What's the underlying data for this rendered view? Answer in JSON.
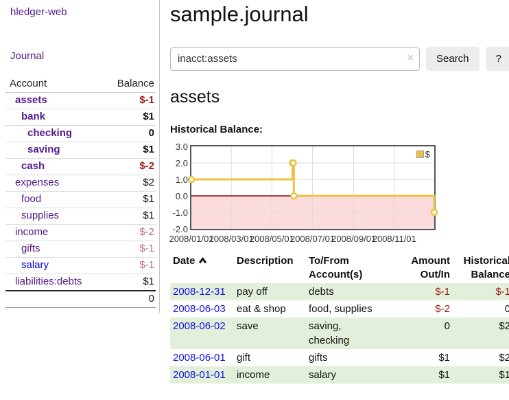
{
  "app": {
    "title": "hledger-web"
  },
  "sidebar": {
    "journal_label": "Journal",
    "table": {
      "headers": [
        "Account",
        "Balance"
      ],
      "rows": [
        {
          "account": "assets",
          "balance": "$-1",
          "indent": 1,
          "bold": true,
          "neg": "strong"
        },
        {
          "account": "bank",
          "balance": "$1",
          "indent": 2,
          "bold": true,
          "neg": ""
        },
        {
          "account": "checking",
          "balance": "0",
          "indent": 3,
          "bold": true,
          "neg": ""
        },
        {
          "account": "saving",
          "balance": "$1",
          "indent": 3,
          "bold": true,
          "neg": ""
        },
        {
          "account": "cash",
          "balance": "$-2",
          "indent": 2,
          "bold": true,
          "neg": "strong"
        },
        {
          "account": "expenses",
          "balance": "$2",
          "indent": 1,
          "bold": false,
          "neg": ""
        },
        {
          "account": "food",
          "balance": "$1",
          "indent": 2,
          "bold": false,
          "neg": ""
        },
        {
          "account": "supplies",
          "balance": "$1",
          "indent": 2,
          "bold": false,
          "neg": ""
        },
        {
          "account": "income",
          "balance": "$-2",
          "indent": 1,
          "bold": false,
          "neg": "soft"
        },
        {
          "account": "gifts",
          "balance": "$-1",
          "indent": 2,
          "bold": false,
          "neg": "soft"
        },
        {
          "account": "salary",
          "balance": "$-1",
          "indent": 2,
          "bold": false,
          "neg": "soft",
          "link_color": "blue"
        },
        {
          "account": "liabilities:debts",
          "balance": "$1",
          "indent": 1,
          "bold": false,
          "neg": ""
        }
      ],
      "total": "0"
    }
  },
  "main": {
    "title": "sample.journal",
    "search": {
      "value": "inacct:assets",
      "clear_icon": "×",
      "button_label": "Search",
      "help_label": "?"
    },
    "account_heading": "assets",
    "chart_title": "Historical Balance:",
    "register": {
      "headers": {
        "date": "Date",
        "description": "Description",
        "accounts_line1": "To/From",
        "accounts_line2": "Account(s)",
        "amount_line1": "Amount",
        "amount_line2": "Out/In",
        "balance_line1": "Historical",
        "balance_line2": "Balance"
      },
      "rows": [
        {
          "date": "2008-12-31",
          "description": "pay off",
          "accounts": [
            "debts"
          ],
          "amount": "$-1",
          "balance": "$-1"
        },
        {
          "date": "2008-06-03",
          "description": "eat & shop",
          "accounts": [
            "food, supplies"
          ],
          "amount": "$-2",
          "balance": "0"
        },
        {
          "date": "2008-06-02",
          "description": "save",
          "accounts": [
            "saving,",
            "checking"
          ],
          "amount": "0",
          "balance": "$2"
        },
        {
          "date": "2008-06-01",
          "description": "gift",
          "accounts": [
            "gifts"
          ],
          "amount": "$1",
          "balance": "$2"
        },
        {
          "date": "2008-01-01",
          "description": "income",
          "accounts": [
            "salary"
          ],
          "amount": "$1",
          "balance": "$1"
        }
      ]
    }
  },
  "colors": {
    "link_purple": "#551a8b",
    "link_blue": "#0000ee",
    "negative_strong": "#9e1a15",
    "negative_soft": "#bd7276",
    "row_stripe_green": "#e2efdb"
  },
  "chart_data": {
    "type": "line",
    "step": true,
    "title": "Historical Balance",
    "xrange": [
      "2008-01-01",
      "2008-12-31"
    ],
    "ylim": [
      -2,
      3
    ],
    "yticks": [
      "3.0",
      "2.0",
      "1.0",
      "0.0",
      "-1.0",
      "-2.0"
    ],
    "xticks": [
      "2008/01/01",
      "2008/03/01",
      "2008/05/01",
      "2008/07/01",
      "2008/09/01",
      "2008/11/01"
    ],
    "series": [
      {
        "name": "$",
        "color": "#edc240",
        "points": [
          [
            "2008-01-01",
            1
          ],
          [
            "2008-06-01",
            2
          ],
          [
            "2008-06-02",
            2
          ],
          [
            "2008-06-03",
            0
          ],
          [
            "2008-12-31",
            -1
          ]
        ]
      }
    ],
    "grid": true,
    "grid_color": "#dcdcdc",
    "negative_fill": "#fbdbdb",
    "zero_line_color": "#8b0000",
    "border_color": "#545454",
    "legend_position": "top-right",
    "legend_label": "$"
  }
}
